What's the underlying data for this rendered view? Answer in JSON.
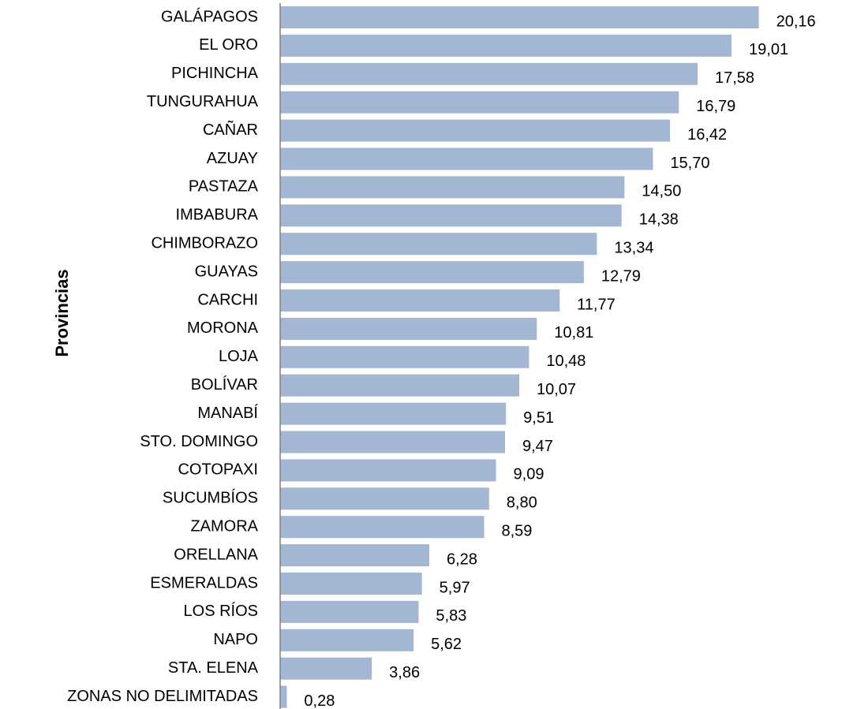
{
  "chart_data": {
    "type": "bar",
    "orientation": "horizontal",
    "y_axis_label": "Provincias",
    "categories": [
      "GALÁPAGOS",
      "EL ORO",
      "PICHINCHA",
      "TUNGURAHUA",
      "CAÑAR",
      "AZUAY",
      "PASTAZA",
      "IMBABURA",
      "CHIMBORAZO",
      "GUAYAS",
      "CARCHI",
      "MORONA",
      "LOJA",
      "BOLÍVAR",
      "MANABÍ",
      "STO. DOMINGO",
      "COTOPAXI",
      "SUCUMBÍOS",
      "ZAMORA",
      "ORELLANA",
      "ESMERALDAS",
      "LOS RÍOS",
      "NAPO",
      "STA. ELENA",
      "ZONAS  NO DELIMITADAS"
    ],
    "values": [
      20.16,
      19.01,
      17.58,
      16.79,
      16.42,
      15.7,
      14.5,
      14.38,
      13.34,
      12.79,
      11.77,
      10.81,
      10.48,
      10.07,
      9.51,
      9.47,
      9.09,
      8.8,
      8.59,
      6.28,
      5.97,
      5.83,
      5.62,
      3.86,
      0.28
    ],
    "value_labels": [
      "20,16",
      "19,01",
      "17,58",
      "16,79",
      "16,42",
      "15,70",
      "14,50",
      "14,38",
      "13,34",
      "12,79",
      "11,77",
      "10,81",
      "10,48",
      "10,07",
      "9,51",
      "9,47",
      "9,09",
      "8,80",
      "8,59",
      "6,28",
      "5,97",
      "5,83",
      "5,62",
      "3,86",
      "0,28"
    ],
    "color": "#a3b6d3",
    "xlim": [
      0,
      22
    ]
  }
}
